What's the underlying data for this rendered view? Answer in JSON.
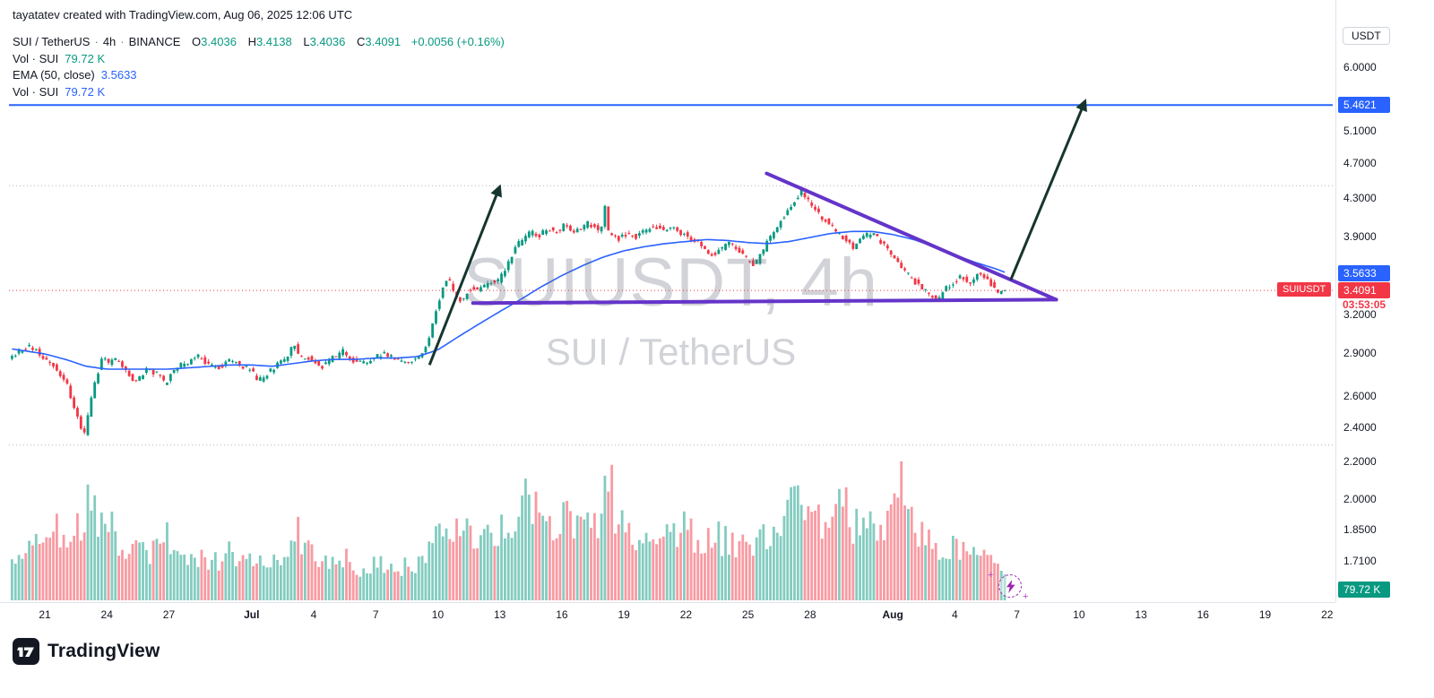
{
  "attribution": "tayatatev created with TradingView.com, Aug 06, 2025 12:06 UTC",
  "legend": {
    "symbol": "SUI / TetherUS",
    "sep": "·",
    "interval": "4h",
    "exchange": "BINANCE",
    "ohlc": {
      "o_k": "O",
      "o": "3.4036",
      "h_k": "H",
      "h": "3.4138",
      "l_k": "L",
      "l": "3.4036",
      "c_k": "C",
      "c": "3.4091",
      "change": "+0.0056 (+0.16%)"
    },
    "rows": [
      {
        "label": "Vol · SUI",
        "value": "79.72 K",
        "value_color": "#089981"
      },
      {
        "label": "EMA (50, close)",
        "value": "3.5633",
        "value_color": "#2962ff"
      },
      {
        "label": "Vol · SUI",
        "value": "79.72 K",
        "value_color": "#2962ff"
      }
    ]
  },
  "watermark": {
    "line1": "SUIUSDT, 4h",
    "line2": "SUI / TetherUS"
  },
  "axis": {
    "currency": "USDT",
    "labels": [
      {
        "text": "6.0000",
        "price": 6.0
      },
      {
        "text": "5.1000",
        "price": 5.1
      },
      {
        "text": "4.7000",
        "price": 4.7
      },
      {
        "text": "4.3000",
        "price": 4.3
      },
      {
        "text": "3.9000",
        "price": 3.9
      },
      {
        "text": "3.2000",
        "price": 3.2
      },
      {
        "text": "2.9000",
        "price": 2.9
      },
      {
        "text": "2.6000",
        "price": 2.6
      },
      {
        "text": "2.4000",
        "price": 2.4
      },
      {
        "text": "2.2000",
        "price": 2.2
      },
      {
        "text": "2.0000",
        "price": 2.0
      },
      {
        "text": "1.8500",
        "price": 1.85
      },
      {
        "text": "1.7100",
        "price": 1.71
      }
    ],
    "target_badge": {
      "text": "5.4621",
      "price": 5.4621,
      "bg": "#2962ff"
    },
    "ema_badge": {
      "text": "3.5633",
      "price": 3.5633,
      "bg": "#2962ff"
    },
    "last_badge": {
      "text": "3.4091",
      "price": 3.4091,
      "bg": "#f23645"
    },
    "volume_badge": {
      "text": "79.72 K",
      "bg": "#089981"
    },
    "countdown": {
      "text": "03:53:05",
      "color": "#f23645"
    },
    "symbol_tag": {
      "text": "SUIUSDT",
      "bg": "#f23645"
    }
  },
  "time_axis": [
    {
      "label": "21",
      "t": 0
    },
    {
      "label": "24",
      "t": 3
    },
    {
      "label": "27",
      "t": 6
    },
    {
      "label": "Jul",
      "t": 10,
      "bold": true
    },
    {
      "label": "4",
      "t": 13
    },
    {
      "label": "7",
      "t": 16
    },
    {
      "label": "10",
      "t": 19
    },
    {
      "label": "13",
      "t": 22
    },
    {
      "label": "16",
      "t": 25
    },
    {
      "label": "19",
      "t": 28
    },
    {
      "label": "22",
      "t": 31
    },
    {
      "label": "25",
      "t": 34
    },
    {
      "label": "28",
      "t": 37
    },
    {
      "label": "Aug",
      "t": 41,
      "bold": true
    },
    {
      "label": "4",
      "t": 44
    },
    {
      "label": "7",
      "t": 47
    },
    {
      "label": "10",
      "t": 50
    },
    {
      "label": "13",
      "t": 53
    },
    {
      "label": "16",
      "t": 56
    },
    {
      "label": "19",
      "t": 59
    },
    {
      "label": "22",
      "t": 62
    }
  ],
  "footer": {
    "brand": "TradingView"
  },
  "chart_data": {
    "type": "candlestick",
    "title": "SUIUSDT, 4h",
    "subtitle": "SUI / TetherUS",
    "exchange": "BINANCE",
    "interval": "4h",
    "scale": "log",
    "y_axis_visible_range": [
      1.6,
      6.3
    ],
    "x_axis_days": "Jun 19 - Aug 22 (t = days since Jun 21)",
    "last_ohlc": {
      "open": 3.4036,
      "high": 3.4138,
      "low": 3.4036,
      "close": 3.4091,
      "change": "+0.0056 (+0.16%)"
    },
    "ema_period": 50,
    "ema_last": 3.5633,
    "volume_last": "79.72 K",
    "up_color": "#089981",
    "down_color": "#f23645",
    "vol_up_color": "rgba(8,153,129,0.5)",
    "vol_down_color": "rgba(242,54,69,0.5)",
    "ema_color": "#2962ff",
    "candles_per_day": 6,
    "time_start_t": -1.67,
    "time_end_t": 46.5,
    "price_keyframes": [
      [
        -1.7,
        2.86
      ],
      [
        -1.2,
        2.92
      ],
      [
        -0.6,
        2.96
      ],
      [
        0,
        2.88
      ],
      [
        0.6,
        2.8
      ],
      [
        1.1,
        2.7
      ],
      [
        1.6,
        2.5
      ],
      [
        1.95,
        2.34
      ],
      [
        2.2,
        2.5
      ],
      [
        2.5,
        2.7
      ],
      [
        2.9,
        2.88
      ],
      [
        3.2,
        2.83
      ],
      [
        3.6,
        2.86
      ],
      [
        4.1,
        2.76
      ],
      [
        4.5,
        2.7
      ],
      [
        5,
        2.79
      ],
      [
        5.5,
        2.76
      ],
      [
        5.9,
        2.68
      ],
      [
        6.3,
        2.79
      ],
      [
        7,
        2.84
      ],
      [
        7.5,
        2.88
      ],
      [
        8,
        2.82
      ],
      [
        8.6,
        2.8
      ],
      [
        9,
        2.86
      ],
      [
        9.5,
        2.82
      ],
      [
        10,
        2.79
      ],
      [
        10.4,
        2.71
      ],
      [
        11,
        2.78
      ],
      [
        11.6,
        2.86
      ],
      [
        11.9,
        2.88
      ],
      [
        12.1,
        3.01
      ],
      [
        12.3,
        2.89
      ],
      [
        13,
        2.86
      ],
      [
        13.5,
        2.81
      ],
      [
        14,
        2.87
      ],
      [
        14.5,
        2.92
      ],
      [
        15,
        2.85
      ],
      [
        15.6,
        2.83
      ],
      [
        16,
        2.88
      ],
      [
        16.5,
        2.91
      ],
      [
        17,
        2.86
      ],
      [
        17.6,
        2.84
      ],
      [
        18,
        2.87
      ],
      [
        18.4,
        2.91
      ],
      [
        18.7,
        3.04
      ],
      [
        19,
        3.24
      ],
      [
        19.35,
        3.46
      ],
      [
        19.6,
        3.52
      ],
      [
        19.9,
        3.37
      ],
      [
        20.2,
        3.31
      ],
      [
        20.6,
        3.42
      ],
      [
        21,
        3.41
      ],
      [
        21.5,
        3.47
      ],
      [
        22,
        3.5
      ],
      [
        22.4,
        3.62
      ],
      [
        22.8,
        3.79
      ],
      [
        23.2,
        3.89
      ],
      [
        23.6,
        3.96
      ],
      [
        24,
        3.92
      ],
      [
        24.4,
        4.0
      ],
      [
        24.8,
        3.95
      ],
      [
        25.2,
        4.02
      ],
      [
        25.6,
        3.97
      ],
      [
        26,
        4.0
      ],
      [
        26.4,
        4.05
      ],
      [
        26.8,
        3.97
      ],
      [
        27.0,
        4.0
      ],
      [
        27.17,
        4.23
      ],
      [
        27.34,
        3.93
      ],
      [
        27.6,
        3.9
      ],
      [
        27.8,
        3.88
      ],
      [
        28.2,
        3.94
      ],
      [
        28.6,
        3.9
      ],
      [
        29,
        3.95
      ],
      [
        29.5,
        4.02
      ],
      [
        30,
        3.97
      ],
      [
        30.4,
        4.02
      ],
      [
        30.8,
        3.95
      ],
      [
        31.2,
        3.91
      ],
      [
        31.6,
        3.85
      ],
      [
        32,
        3.79
      ],
      [
        32.4,
        3.72
      ],
      [
        32.8,
        3.8
      ],
      [
        33.2,
        3.84
      ],
      [
        33.6,
        3.77
      ],
      [
        34,
        3.69
      ],
      [
        34.4,
        3.64
      ],
      [
        34.8,
        3.77
      ],
      [
        35.2,
        3.92
      ],
      [
        35.6,
        4.05
      ],
      [
        36,
        4.18
      ],
      [
        36.4,
        4.31
      ],
      [
        36.7,
        4.4
      ],
      [
        37,
        4.27
      ],
      [
        37.35,
        4.17
      ],
      [
        37.7,
        4.09
      ],
      [
        38,
        4.04
      ],
      [
        38.4,
        3.94
      ],
      [
        38.8,
        3.87
      ],
      [
        39.2,
        3.79
      ],
      [
        39.6,
        3.89
      ],
      [
        40,
        3.95
      ],
      [
        40.4,
        3.88
      ],
      [
        40.8,
        3.79
      ],
      [
        41.2,
        3.69
      ],
      [
        41.6,
        3.59
      ],
      [
        42,
        3.51
      ],
      [
        42.4,
        3.44
      ],
      [
        42.8,
        3.38
      ],
      [
        43.2,
        3.31
      ],
      [
        43.6,
        3.42
      ],
      [
        44,
        3.48
      ],
      [
        44.4,
        3.53
      ],
      [
        44.8,
        3.48
      ],
      [
        45.2,
        3.55
      ],
      [
        45.6,
        3.5
      ],
      [
        46,
        3.43
      ],
      [
        46.25,
        3.37
      ],
      [
        46.5,
        3.41
      ]
    ],
    "ema_keyframes": [
      [
        -1.7,
        2.94
      ],
      [
        0,
        2.9
      ],
      [
        1,
        2.86
      ],
      [
        2,
        2.81
      ],
      [
        3,
        2.79
      ],
      [
        4,
        2.79
      ],
      [
        5,
        2.79
      ],
      [
        6,
        2.79
      ],
      [
        7,
        2.8
      ],
      [
        8,
        2.81
      ],
      [
        9,
        2.82
      ],
      [
        10,
        2.82
      ],
      [
        11,
        2.81
      ],
      [
        12,
        2.83
      ],
      [
        13,
        2.85
      ],
      [
        14,
        2.86
      ],
      [
        15,
        2.86
      ],
      [
        16,
        2.87
      ],
      [
        17,
        2.87
      ],
      [
        18,
        2.88
      ],
      [
        19,
        2.93
      ],
      [
        20,
        3.03
      ],
      [
        21,
        3.13
      ],
      [
        22,
        3.23
      ],
      [
        23,
        3.33
      ],
      [
        24,
        3.44
      ],
      [
        25,
        3.54
      ],
      [
        26,
        3.63
      ],
      [
        27,
        3.71
      ],
      [
        28,
        3.77
      ],
      [
        29,
        3.81
      ],
      [
        30,
        3.84
      ],
      [
        31,
        3.86
      ],
      [
        32,
        3.88
      ],
      [
        33,
        3.87
      ],
      [
        34,
        3.85
      ],
      [
        35,
        3.84
      ],
      [
        36,
        3.86
      ],
      [
        37,
        3.9
      ],
      [
        38,
        3.94
      ],
      [
        39,
        3.96
      ],
      [
        40,
        3.96
      ],
      [
        41,
        3.93
      ],
      [
        42,
        3.88
      ],
      [
        43,
        3.81
      ],
      [
        44,
        3.73
      ],
      [
        45,
        3.66
      ],
      [
        46,
        3.6
      ],
      [
        46.5,
        3.5633
      ]
    ],
    "volume_keyframes": [
      [
        -1.7,
        0.22
      ],
      [
        -1,
        0.32
      ],
      [
        -0.5,
        0.45
      ],
      [
        0,
        0.38
      ],
      [
        0.5,
        0.52
      ],
      [
        1,
        0.4
      ],
      [
        1.5,
        0.45
      ],
      [
        1.95,
        0.6
      ],
      [
        2.3,
        0.72
      ],
      [
        2.6,
        0.52
      ],
      [
        2.9,
        0.74
      ],
      [
        3.3,
        0.48
      ],
      [
        4,
        0.3
      ],
      [
        4.5,
        0.36
      ],
      [
        5,
        0.3
      ],
      [
        5.6,
        0.4
      ],
      [
        6,
        0.44
      ],
      [
        6.5,
        0.3
      ],
      [
        7,
        0.34
      ],
      [
        7.6,
        0.28
      ],
      [
        8,
        0.24
      ],
      [
        8.6,
        0.3
      ],
      [
        9,
        0.34
      ],
      [
        9.6,
        0.25
      ],
      [
        10,
        0.3
      ],
      [
        10.5,
        0.34
      ],
      [
        11,
        0.28
      ],
      [
        11.5,
        0.24
      ],
      [
        12.1,
        0.52
      ],
      [
        12.5,
        0.38
      ],
      [
        13,
        0.34
      ],
      [
        13.6,
        0.28
      ],
      [
        14,
        0.24
      ],
      [
        14.5,
        0.3
      ],
      [
        15,
        0.2
      ],
      [
        15.6,
        0.24
      ],
      [
        16,
        0.28
      ],
      [
        16.6,
        0.24
      ],
      [
        17,
        0.2
      ],
      [
        17.5,
        0.24
      ],
      [
        18,
        0.24
      ],
      [
        18.6,
        0.36
      ],
      [
        19,
        0.5
      ],
      [
        19.35,
        0.56
      ],
      [
        19.7,
        0.5
      ],
      [
        20,
        0.44
      ],
      [
        20.5,
        0.5
      ],
      [
        21,
        0.44
      ],
      [
        21.5,
        0.4
      ],
      [
        22,
        0.46
      ],
      [
        22.6,
        0.54
      ],
      [
        23.1,
        0.72
      ],
      [
        23.4,
        0.6
      ],
      [
        24,
        0.58
      ],
      [
        24.5,
        0.54
      ],
      [
        25,
        0.58
      ],
      [
        25.5,
        0.5
      ],
      [
        26,
        0.46
      ],
      [
        26.5,
        0.5
      ],
      [
        27,
        0.58
      ],
      [
        27.3,
        1.0
      ],
      [
        27.6,
        0.6
      ],
      [
        28,
        0.5
      ],
      [
        28.5,
        0.44
      ],
      [
        29,
        0.4
      ],
      [
        29.5,
        0.44
      ],
      [
        30,
        0.4
      ],
      [
        30.5,
        0.46
      ],
      [
        31,
        0.5
      ],
      [
        31.5,
        0.44
      ],
      [
        32,
        0.4
      ],
      [
        32.5,
        0.44
      ],
      [
        33,
        0.4
      ],
      [
        33.5,
        0.34
      ],
      [
        34,
        0.44
      ],
      [
        34.5,
        0.4
      ],
      [
        35,
        0.44
      ],
      [
        35.5,
        0.5
      ],
      [
        36,
        0.56
      ],
      [
        36.5,
        1.0
      ],
      [
        36.8,
        0.66
      ],
      [
        37.2,
        0.58
      ],
      [
        37.6,
        0.52
      ],
      [
        38,
        0.5
      ],
      [
        38.5,
        0.74
      ],
      [
        39,
        0.5
      ],
      [
        39.5,
        0.54
      ],
      [
        40,
        0.58
      ],
      [
        40.5,
        0.5
      ],
      [
        41,
        0.62
      ],
      [
        41.35,
        0.84
      ],
      [
        41.7,
        0.6
      ],
      [
        42,
        0.5
      ],
      [
        42.5,
        0.44
      ],
      [
        43,
        0.4
      ],
      [
        43.5,
        0.34
      ],
      [
        44,
        0.4
      ],
      [
        44.5,
        0.34
      ],
      [
        45,
        0.42
      ],
      [
        45.5,
        0.3
      ],
      [
        46,
        0.26
      ],
      [
        46.5,
        0.14
      ]
    ],
    "drawings": {
      "target_line": {
        "price": 5.4621,
        "color": "#2962ff",
        "width": 2
      },
      "triangle_lines": [
        {
          "t1": 34.9,
          "p1": 4.59,
          "t2": 48.9,
          "p2": 3.33,
          "color": "#6434c9",
          "width": 4
        },
        {
          "t1": 20.7,
          "p1": 3.3,
          "t2": 48.9,
          "p2": 3.33,
          "color": "#6434c9",
          "width": 4
        }
      ],
      "arrows": [
        {
          "t1": 18.6,
          "p1": 2.82,
          "t2": 22.0,
          "p2": 4.44,
          "color": "#16352f",
          "width": 3
        },
        {
          "t1": 46.7,
          "p1": 3.5,
          "t2": 50.3,
          "p2": 5.52,
          "color": "#16352f",
          "width": 3
        }
      ],
      "dotted_levels": {
        "prices": [
          4.45,
          2.3
        ],
        "color": "#b0b4bf"
      },
      "last_price_line": {
        "price": 3.4091,
        "color": "#f23645"
      }
    }
  }
}
